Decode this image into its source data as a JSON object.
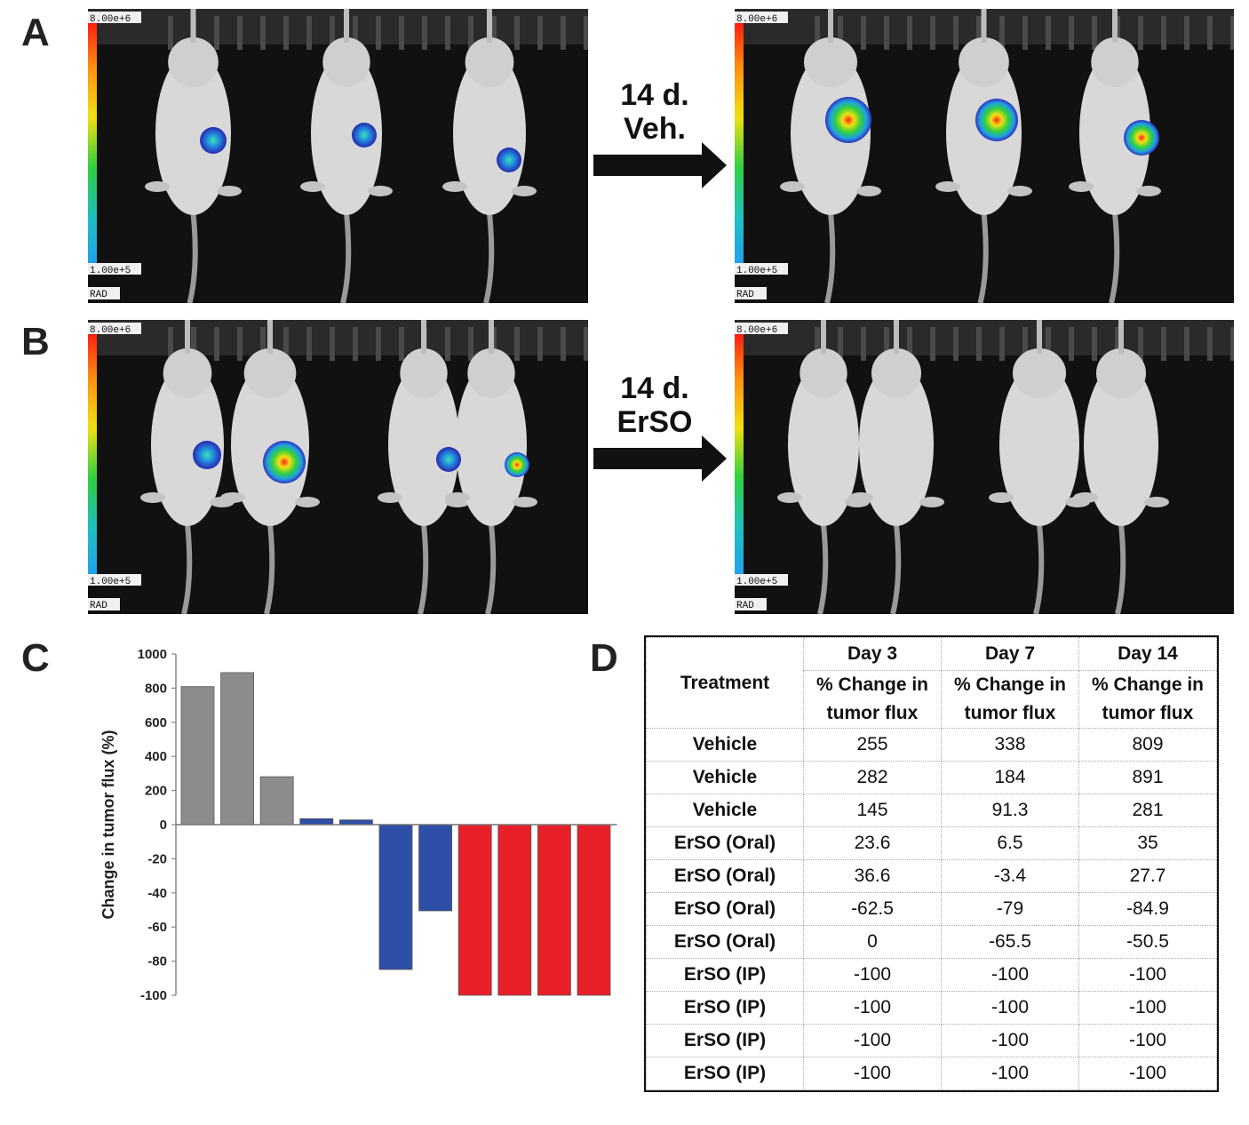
{
  "panels": {
    "a": {
      "letter": "A",
      "arrow_label_1": "14 d.",
      "arrow_label_2": "Veh."
    },
    "b": {
      "letter": "B",
      "arrow_label_1": "14 d.",
      "arrow_label_2": "ErSO"
    },
    "c": {
      "letter": "C"
    },
    "d": {
      "letter": "D"
    }
  },
  "scale_bar": {
    "max": "8.00e+6",
    "min": "1.00e+5",
    "unit": "RAD"
  },
  "colors": {
    "vehicle": "#8c8c8c",
    "oral": "#2e4fa8",
    "ip": "#e8202a"
  },
  "chart_data": {
    "type": "bar",
    "title": "",
    "ylabel": "Change in tumor flux (%)",
    "yticks": [
      "1000",
      "800",
      "600",
      "400",
      "200",
      "0",
      "-20",
      "-40",
      "-60",
      "-80",
      "-100"
    ],
    "note": "broken y-axis: positive segment 0–1000, negative segment 0 to -100",
    "series": [
      {
        "group": "Vehicle",
        "color": "#8c8c8c",
        "values": [
          809,
          891,
          281
        ]
      },
      {
        "group": "ErSO (Oral)",
        "color": "#2e4fa8",
        "values": [
          35,
          27.7,
          -84.9,
          -50.5
        ]
      },
      {
        "group": "ErSO (IP)",
        "color": "#e8202a",
        "values": [
          -100,
          -100,
          -100,
          -100
        ]
      }
    ]
  },
  "table": {
    "treatment_header": "Treatment",
    "day_headers": [
      "Day 3",
      "Day 7",
      "Day 14"
    ],
    "sub_header_line1": "% Change in",
    "sub_header_line2": "tumor flux",
    "rows": [
      {
        "treatment": "Vehicle",
        "values": [
          "255",
          "338",
          "809"
        ]
      },
      {
        "treatment": "Vehicle",
        "values": [
          "282",
          "184",
          "891"
        ]
      },
      {
        "treatment": "Vehicle",
        "values": [
          "145",
          "91.3",
          "281"
        ]
      },
      {
        "treatment": "ErSO (Oral)",
        "values": [
          "23.6",
          "6.5",
          "35"
        ]
      },
      {
        "treatment": "ErSO (Oral)",
        "values": [
          "36.6",
          "-3.4",
          "27.7"
        ]
      },
      {
        "treatment": "ErSO (Oral)",
        "values": [
          "-62.5",
          "-79",
          "-84.9"
        ]
      },
      {
        "treatment": "ErSO (Oral)",
        "values": [
          "0",
          "-65.5",
          "-50.5"
        ]
      },
      {
        "treatment": "ErSO (IP)",
        "values": [
          "-100",
          "-100",
          "-100"
        ]
      },
      {
        "treatment": "ErSO (IP)",
        "values": [
          "-100",
          "-100",
          "-100"
        ]
      },
      {
        "treatment": "ErSO (IP)",
        "values": [
          "-100",
          "-100",
          "-100"
        ]
      },
      {
        "treatment": "ErSO (IP)",
        "values": [
          "-100",
          "-100",
          "-100"
        ]
      }
    ]
  }
}
